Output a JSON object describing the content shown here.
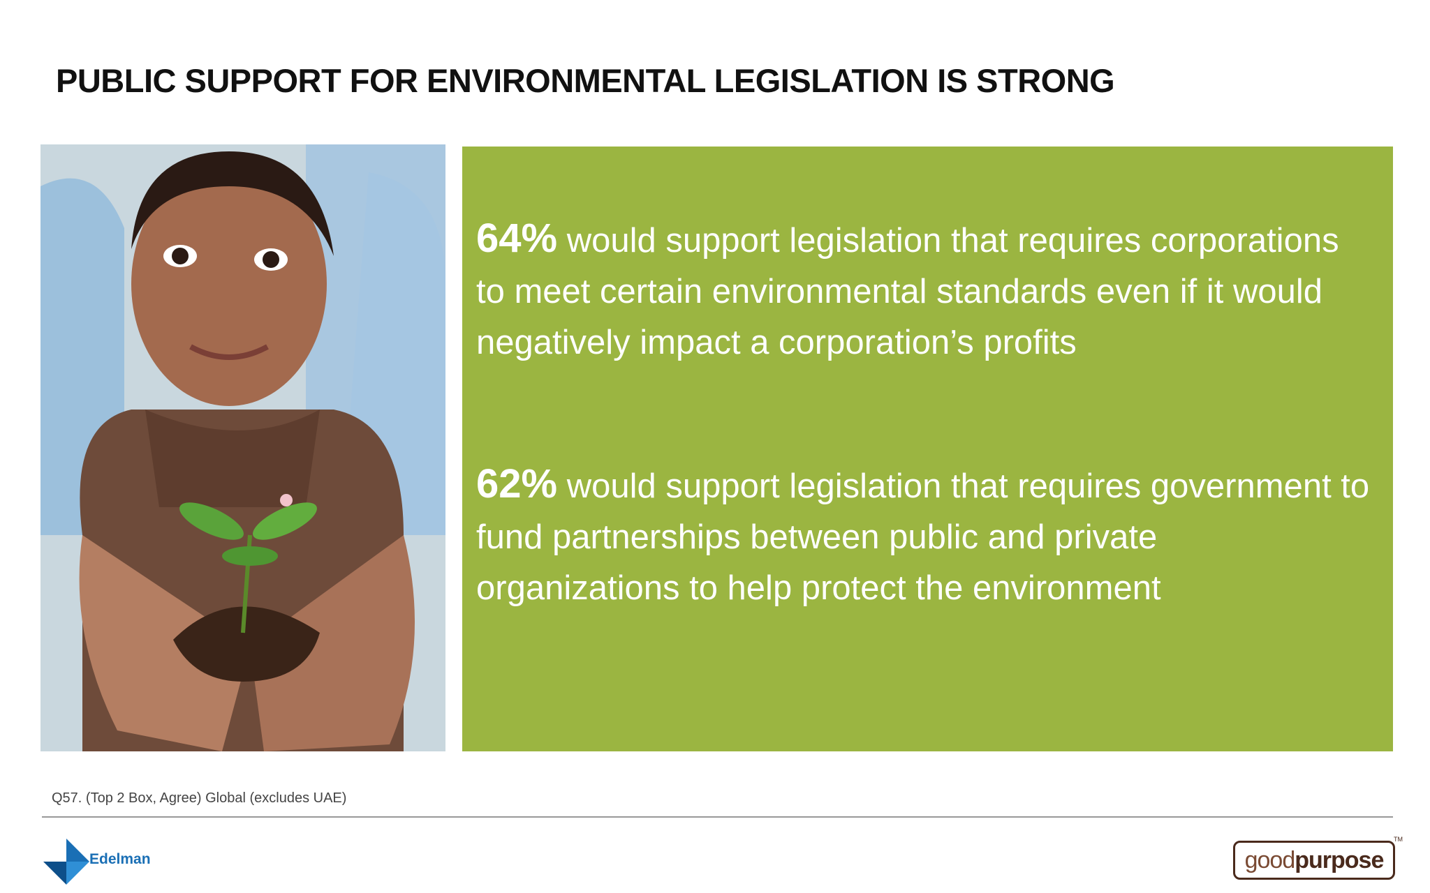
{
  "header": {
    "title": "PUBLIC SUPPORT FOR ENVIRONMENTAL LEGISLATION IS STRONG"
  },
  "statements": [
    {
      "percent": "64%",
      "text": "would support legislation that requires corporations to meet certain environmental standards even if it would negatively impact a corporation’s profits"
    },
    {
      "percent": "62%",
      "text": "would support legislation that requires government to fund partnerships between public and private organizations to help protect the environment"
    }
  ],
  "footnote": "Q57. (Top 2 Box, Agree) Global (excludes UAE)",
  "logos": {
    "left": "Edelman",
    "right_light": "good",
    "right_bold": "purpose",
    "trademark": "TM"
  }
}
